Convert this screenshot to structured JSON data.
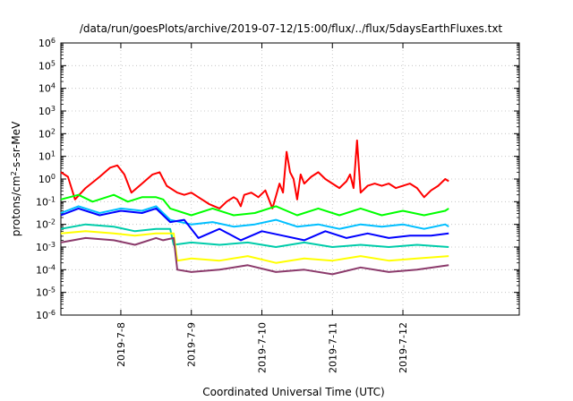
{
  "chart_data": {
    "type": "line",
    "title": "/data/run/goesPlots/archive/2019-07-12/15:00/flux/../flux/5daysEarthFluxes.txt",
    "xlabel": "Coordinated Universal Time (UTC)",
    "ylabel_parts": [
      "protons/cm",
      "2",
      "-s-sr-MeV"
    ],
    "y_scale": "log",
    "ylim_exp": [
      -6,
      6
    ],
    "y_ticks_exp": [
      -6,
      -5,
      -4,
      -3,
      -2,
      -1,
      0,
      1,
      2,
      3,
      4,
      5,
      6
    ],
    "xlim_days": [
      6.15,
      12.65
    ],
    "x_ticks": [
      {
        "day": 7.0,
        "label": "2019-7-8"
      },
      {
        "day": 8.0,
        "label": "2019-7-9"
      },
      {
        "day": 9.0,
        "label": "2019-7-10"
      },
      {
        "day": 10.0,
        "label": "2019-7-11"
      },
      {
        "day": 11.0,
        "label": "2019-7-12"
      }
    ],
    "grid": true,
    "series": [
      {
        "color": "#ff0000",
        "x": [
          6.15,
          6.25,
          6.35,
          6.5,
          6.7,
          6.85,
          6.95,
          7.05,
          7.15,
          7.3,
          7.45,
          7.55,
          7.65,
          7.8,
          7.9,
          8.0,
          8.1,
          8.25,
          8.4,
          8.5,
          8.6,
          8.65,
          8.7,
          8.75,
          8.85,
          8.95,
          9.05,
          9.15,
          9.25,
          9.3,
          9.35,
          9.4,
          9.45,
          9.5,
          9.55,
          9.6,
          9.7,
          9.8,
          9.9,
          10.0,
          10.1,
          10.2,
          10.25,
          10.3,
          10.35,
          10.4,
          10.5,
          10.6,
          10.7,
          10.8,
          10.9,
          11.0,
          11.1,
          11.2,
          11.3,
          11.4,
          11.5,
          11.6,
          11.65
        ],
        "y": [
          0.3,
          0.1,
          -0.9,
          -0.4,
          0.1,
          0.5,
          0.6,
          0.2,
          -0.6,
          -0.2,
          0.2,
          0.3,
          -0.3,
          -0.6,
          -0.7,
          -0.6,
          -0.8,
          -1.1,
          -1.3,
          -1.0,
          -0.8,
          -0.9,
          -1.2,
          -0.7,
          -0.6,
          -0.8,
          -0.5,
          -1.3,
          -0.2,
          -0.6,
          1.2,
          0.3,
          0.0,
          -0.9,
          0.2,
          -0.2,
          0.1,
          0.3,
          0.0,
          -0.2,
          -0.4,
          -0.1,
          0.2,
          -0.4,
          1.7,
          -0.6,
          -0.3,
          -0.2,
          -0.3,
          -0.2,
          -0.4,
          -0.3,
          -0.2,
          -0.4,
          -0.8,
          -0.5,
          -0.3,
          0.0,
          -0.1
        ]
      },
      {
        "color": "#00ff00",
        "x": [
          6.15,
          6.4,
          6.6,
          6.9,
          7.1,
          7.3,
          7.5,
          7.6,
          7.7,
          8.0,
          8.3,
          8.6,
          8.9,
          9.2,
          9.5,
          9.8,
          10.1,
          10.4,
          10.7,
          11.0,
          11.3,
          11.6,
          11.65
        ],
        "y": [
          -0.9,
          -0.7,
          -1.0,
          -0.7,
          -1.0,
          -0.8,
          -0.8,
          -0.9,
          -1.3,
          -1.6,
          -1.3,
          -1.6,
          -1.5,
          -1.2,
          -1.6,
          -1.3,
          -1.6,
          -1.3,
          -1.6,
          -1.4,
          -1.6,
          -1.4,
          -1.3
        ]
      },
      {
        "color": "#00bfff",
        "x": [
          6.15,
          6.4,
          6.7,
          7.0,
          7.3,
          7.5,
          7.6,
          7.7,
          8.0,
          8.3,
          8.6,
          8.9,
          9.2,
          9.5,
          9.8,
          10.1,
          10.4,
          10.7,
          11.0,
          11.3,
          11.6,
          11.65
        ],
        "y": [
          -1.5,
          -1.2,
          -1.5,
          -1.3,
          -1.4,
          -1.2,
          -1.5,
          -1.8,
          -2.0,
          -1.9,
          -2.1,
          -2.0,
          -1.8,
          -2.1,
          -2.0,
          -2.2,
          -2.0,
          -2.1,
          -2.0,
          -2.2,
          -2.0,
          -2.1
        ]
      },
      {
        "color": "#0000ff",
        "x": [
          6.15,
          6.4,
          6.7,
          7.0,
          7.3,
          7.5,
          7.6,
          7.7,
          7.9,
          8.1,
          8.4,
          8.7,
          9.0,
          9.3,
          9.6,
          9.9,
          10.2,
          10.5,
          10.8,
          11.1,
          11.4,
          11.65
        ],
        "y": [
          -1.6,
          -1.3,
          -1.6,
          -1.4,
          -1.5,
          -1.3,
          -1.6,
          -1.9,
          -1.8,
          -2.6,
          -2.2,
          -2.7,
          -2.3,
          -2.5,
          -2.7,
          -2.3,
          -2.6,
          -2.4,
          -2.6,
          -2.5,
          -2.5,
          -2.4
        ]
      },
      {
        "color": "#00ccaa",
        "x": [
          6.15,
          6.5,
          6.9,
          7.2,
          7.5,
          7.7,
          7.75,
          8.0,
          8.4,
          8.8,
          9.2,
          9.6,
          10.0,
          10.4,
          10.8,
          11.2,
          11.65
        ],
        "y": [
          -2.2,
          -2.0,
          -2.1,
          -2.3,
          -2.2,
          -2.2,
          -2.9,
          -2.8,
          -2.9,
          -2.8,
          -3.0,
          -2.8,
          -3.0,
          -2.9,
          -3.0,
          -2.9,
          -3.0
        ]
      },
      {
        "color": "#ffff00",
        "x": [
          6.15,
          6.5,
          6.9,
          7.2,
          7.5,
          7.6,
          7.75,
          7.8,
          8.0,
          8.4,
          8.8,
          9.2,
          9.6,
          10.0,
          10.4,
          10.8,
          11.2,
          11.65
        ],
        "y": [
          -2.4,
          -2.3,
          -2.4,
          -2.5,
          -2.4,
          -2.4,
          -2.4,
          -3.6,
          -3.5,
          -3.6,
          -3.4,
          -3.7,
          -3.5,
          -3.6,
          -3.4,
          -3.6,
          -3.5,
          -3.4
        ]
      },
      {
        "color": "#8b3a6b",
        "x": [
          6.15,
          6.5,
          6.9,
          7.2,
          7.5,
          7.6,
          7.75,
          7.8,
          8.0,
          8.4,
          8.8,
          9.2,
          9.6,
          10.0,
          10.4,
          10.8,
          11.2,
          11.65
        ],
        "y": [
          -2.8,
          -2.6,
          -2.7,
          -2.9,
          -2.6,
          -2.7,
          -2.6,
          -4.0,
          -4.1,
          -4.0,
          -3.8,
          -4.1,
          -4.0,
          -4.2,
          -3.9,
          -4.1,
          -4.0,
          -3.8
        ]
      }
    ]
  }
}
